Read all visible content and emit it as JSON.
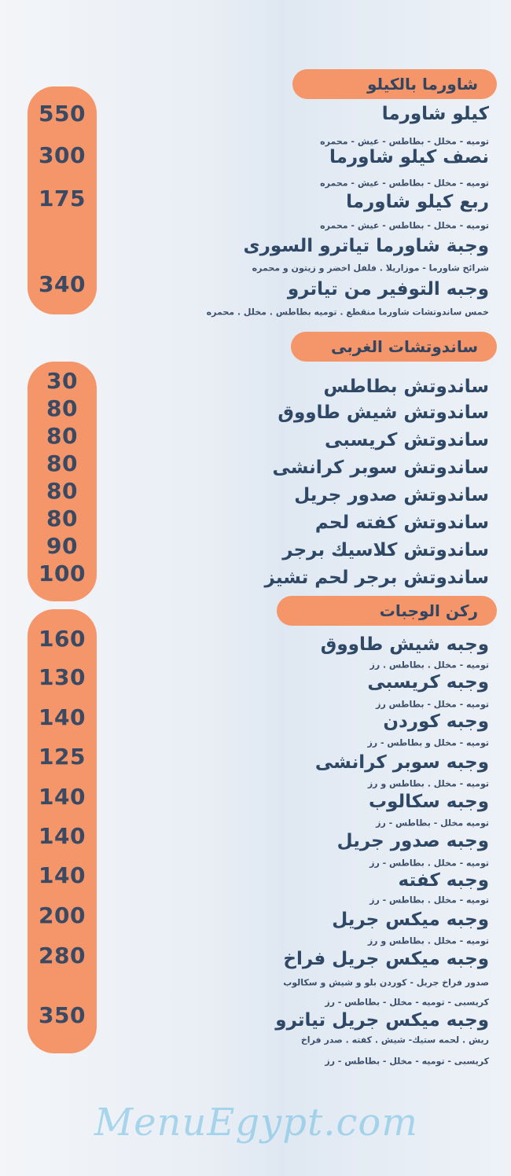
{
  "sections": [
    {
      "header": "شاورما بالكيلو",
      "items": [
        {
          "name": "كيلو شاورما",
          "desc": [
            "توميه - مخلل - بطاطس - عيش - محمره"
          ],
          "price": "550"
        },
        {
          "name": "نصف كيلو شاورما",
          "desc": [
            "توميه - مخلل - بطاطس - عيش - محمره"
          ],
          "price": "300"
        },
        {
          "name": "ربع كيلو شاورما",
          "desc": [
            "توميه - مخلل - بطاطس - عيش - محمره"
          ],
          "price": "175"
        },
        {
          "name": "وجبة شاورما تياترو السورى",
          "desc": [
            "شرائح شاورما - موزاريلا . فلفل اخضر و زيتون و محمره"
          ],
          "price": ""
        },
        {
          "name": "وجبه التوفير من تياترو",
          "desc": [
            "خمس ساندوتشات شاورما منقطع . توميه بطاطس . مخلل . محمره"
          ],
          "price": "340"
        }
      ]
    },
    {
      "header": "ساندوتشات الغربى",
      "items": [
        {
          "name": "ساندوتش بطاطس",
          "desc": [],
          "price": "30"
        },
        {
          "name": "ساندوتش شيش طاووق",
          "desc": [],
          "price": "80"
        },
        {
          "name": "ساندوتش كريسبى",
          "desc": [],
          "price": "80"
        },
        {
          "name": "ساندوتش سوبر كرانشى",
          "desc": [],
          "price": "80"
        },
        {
          "name": "ساندوتش صدور جريل",
          "desc": [],
          "price": "80"
        },
        {
          "name": "ساندوتش كفته لحم",
          "desc": [],
          "price": "80"
        },
        {
          "name": "ساندوتش كلاسيك برجر",
          "desc": [],
          "price": "90"
        },
        {
          "name": "ساندوتش برجر لحم تشيز",
          "desc": [],
          "price": "100"
        }
      ]
    },
    {
      "header": "ركن الوجبات",
      "items": [
        {
          "name": "وجبه شيش طاووق",
          "desc": [
            "توميه - مخلل . بطاطس . رز"
          ],
          "price": "160"
        },
        {
          "name": "وجبه كريسبى",
          "desc": [
            "توميه - مخلل - بطاطس رز"
          ],
          "price": "130"
        },
        {
          "name": "وجبه كوردن",
          "desc": [
            "توميه - مخلل و بطاطس - رز"
          ],
          "price": "140"
        },
        {
          "name": "وجبه سوبر كرانشى",
          "desc": [
            "توميه - مخلل . بطاطس و رز"
          ],
          "price": "125"
        },
        {
          "name": "وجبه سكالوب",
          "desc": [
            "توميه مخلل - بطاطس - رز"
          ],
          "price": "140"
        },
        {
          "name": "وجبه صدور جريل",
          "desc": [
            "توميه - مخلل . بطاطس - رز"
          ],
          "price": "140"
        },
        {
          "name": "وجبه كفته",
          "desc": [
            "توميه - مخلل . بطاطس - رز"
          ],
          "price": "140"
        },
        {
          "name": "وجبه ميكس جريل",
          "desc": [
            "توميه - مخلل . بطاطس و رز"
          ],
          "price": "200"
        },
        {
          "name": "وجبه ميكس جريل فراخ",
          "desc": [
            "صدور فراخ جريل - كوردن بلو و شيش و سكالوب",
            "كريسبى - توميه - مخلل - بطاطس - رز"
          ],
          "price": "280"
        },
        {
          "name": "وجبه ميكس جريل تياترو",
          "desc": [
            "ريش . لحمه ستيك- شيش . كفته . صدر فراخ",
            "كريسبى - توميه - مخلل - بطاطس - رز"
          ],
          "price": "350"
        }
      ]
    }
  ],
  "watermark": "MenuEgypt.com",
  "colors": {
    "accent": "#f4956a",
    "text": "#2f4866"
  }
}
